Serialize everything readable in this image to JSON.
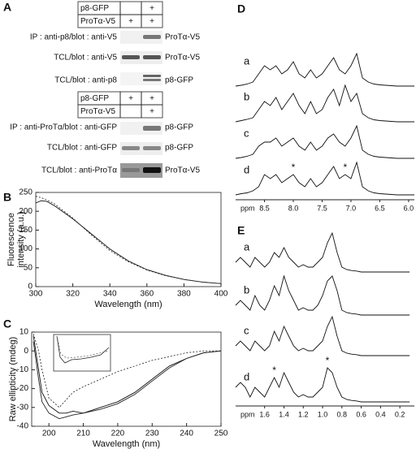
{
  "panel_a": {
    "label": "A",
    "blots": [
      {
        "header": [
          {
            "label": "p8-GFP",
            "cells": [
              null,
              "+"
            ]
          },
          {
            "label": "ProTα-V5",
            "cells": [
              "+",
              "+"
            ]
          }
        ],
        "rows": [
          {
            "label": "IP : anti-p8/blot : anti-V5",
            "band": "ProTα-V5"
          },
          {
            "label": "TCL/blot : anti-V5",
            "band": "ProTα-V5"
          },
          {
            "label": "TCL/blot : anti-p8",
            "band": "p8-GFP"
          }
        ]
      },
      {
        "header": [
          {
            "label": "p8-GFP",
            "cells": [
              "+",
              "+"
            ]
          },
          {
            "label": "ProTα-V5",
            "cells": [
              null,
              "+"
            ]
          }
        ],
        "rows": [
          {
            "label": "IP : anti-ProTα/blot : anti-GFP",
            "band": "p8-GFP"
          },
          {
            "label": "TCL/blot : anti-GFP",
            "band": "p8-GFP"
          },
          {
            "label": "TCL/blot : anti-ProTα",
            "band": "ProTα-V5"
          }
        ]
      }
    ]
  },
  "chart_data": [
    {
      "type": "line",
      "label": "B",
      "xlabel": "Wavelength (nm)",
      "ylabel": [
        "Fluorescence",
        "intensity (a.u.)"
      ],
      "x": [
        300,
        303,
        306,
        310,
        320,
        330,
        340,
        350,
        360,
        370,
        380,
        390,
        400
      ],
      "series": [
        {
          "color": "#111",
          "values": [
            222,
            228,
            226,
            215,
            180,
            140,
            100,
            68,
            45,
            30,
            19,
            12,
            8
          ]
        },
        {
          "color": "#333",
          "dash": "2,2",
          "values": [
            240,
            236,
            230,
            220,
            182,
            137,
            96,
            66,
            44,
            29,
            19,
            12,
            8
          ]
        }
      ],
      "xlim": [
        300,
        400
      ],
      "xticks": [
        300,
        320,
        340,
        360,
        380,
        400
      ],
      "ylim": [
        0,
        250
      ],
      "yticks": [
        0,
        50,
        100,
        150,
        200,
        250
      ]
    },
    {
      "type": "line",
      "label": "C",
      "xlabel": "Wavelength (nm)",
      "ylabel": [
        "Raw ellipticity (mdeg)"
      ],
      "x": [
        195.5,
        197,
        198,
        200,
        203,
        205,
        207,
        210,
        215,
        220,
        225,
        230,
        235,
        240,
        245,
        250
      ],
      "series": [
        {
          "color": "#111",
          "values": [
            8,
            -10,
            -22,
            -29,
            -33,
            -33,
            -32,
            -33,
            -30,
            -27,
            -22,
            -15,
            -8,
            -4,
            -1,
            0
          ]
        },
        {
          "color": "#222",
          "values": [
            5,
            -15,
            -27,
            -33,
            -36,
            -35,
            -34,
            -33,
            -31,
            -28,
            -23,
            -16,
            -9,
            -4,
            -1,
            0
          ]
        },
        {
          "color": "#333",
          "dash": "2,2",
          "values": [
            9,
            0,
            -10,
            -25,
            -30,
            -26,
            -22,
            -19,
            -15,
            -11,
            -8,
            -5,
            -3,
            -1,
            0,
            0
          ]
        }
      ],
      "xlim": [
        195,
        250
      ],
      "xticks": [
        200,
        210,
        220,
        230,
        240,
        250
      ],
      "ylim": [
        -40,
        10
      ],
      "yticks": [
        -40,
        -30,
        -20,
        -10,
        0,
        10
      ]
    },
    {
      "type": "spectrum",
      "label": "D",
      "xlabel": "ppm",
      "x": [
        9.0,
        8.9,
        8.8,
        8.7,
        8.6,
        8.5,
        8.4,
        8.3,
        8.2,
        8.1,
        8.0,
        7.9,
        7.8,
        7.7,
        7.6,
        7.5,
        7.4,
        7.3,
        7.2,
        7.1,
        7.0,
        6.9,
        6.8,
        6.7,
        6.6,
        6.5,
        6.4,
        6.3,
        6.2,
        6.1,
        6.0,
        5.9
      ],
      "series": [
        {
          "name": "a",
          "color": "#111",
          "values": [
            0,
            0.2,
            0.5,
            1,
            3,
            5,
            4,
            5,
            3,
            4,
            6,
            3,
            2,
            4,
            2,
            3,
            5,
            7,
            4,
            3,
            5,
            8,
            2,
            1,
            0.5,
            0.3,
            0.2,
            0.1,
            0,
            0,
            0,
            0
          ]
        },
        {
          "name": "b",
          "color": "#111",
          "values": [
            0,
            0.3,
            0.6,
            1,
            3,
            5,
            4,
            6,
            3,
            5,
            7,
            4,
            2,
            5,
            2,
            3,
            6,
            8,
            4,
            9,
            5,
            7,
            2,
            1,
            0.5,
            0.3,
            0.2,
            0.1,
            0,
            0,
            0,
            0
          ]
        },
        {
          "name": "c",
          "color": "#111",
          "values": [
            0,
            0.2,
            0.5,
            1,
            3,
            4,
            4,
            5,
            3,
            4,
            5,
            3,
            2,
            4,
            2,
            3,
            5,
            6,
            4,
            3,
            5,
            8,
            2,
            1,
            0.5,
            0.3,
            0.2,
            0.1,
            0,
            0,
            0,
            0
          ]
        },
        {
          "name": "d",
          "color": "#111",
          "values": [
            0,
            0.3,
            0.5,
            1,
            2,
            5,
            4,
            5,
            3,
            4,
            5,
            3,
            2,
            4,
            2,
            3,
            5,
            7,
            4,
            5,
            4,
            8,
            2,
            1,
            0.5,
            0.3,
            0.2,
            0.1,
            0,
            0,
            0,
            0
          ],
          "annotations": [
            {
              "text": "*",
              "x": 8.0
            },
            {
              "text": "*",
              "x": 7.1
            }
          ]
        }
      ],
      "xlim": [
        9.0,
        5.9
      ],
      "xticks": [
        8.5,
        {
          "value": 8,
          "label": "8.0"
        },
        7.5,
        {
          "value": 7,
          "label": "7.0"
        },
        6.5,
        {
          "value": 6,
          "label": "6.0"
        }
      ]
    },
    {
      "type": "spectrum",
      "label": "E",
      "xlabel": "ppm",
      "x": [
        1.9,
        1.85,
        1.8,
        1.75,
        1.7,
        1.65,
        1.6,
        1.55,
        1.5,
        1.45,
        1.4,
        1.35,
        1.3,
        1.25,
        1.2,
        1.15,
        1.1,
        1.05,
        1.0,
        0.95,
        0.9,
        0.85,
        0.8,
        0.75,
        0.7,
        0.65,
        0.6,
        0.55,
        0.5,
        0.45,
        0.4,
        0.35,
        0.3,
        0.25,
        0.2,
        0.15,
        0.1
      ],
      "series": [
        {
          "name": "a",
          "color": "#111",
          "values": [
            2,
            3,
            2,
            1,
            3,
            2,
            1,
            2,
            4,
            3,
            5,
            3,
            2,
            1,
            1.5,
            1,
            1,
            2,
            3,
            6,
            8,
            4,
            1,
            0.5,
            0.3,
            0.2,
            0,
            0,
            0,
            0,
            0,
            0,
            0,
            0,
            0,
            0,
            0
          ]
        },
        {
          "name": "b",
          "color": "#111",
          "values": [
            2,
            3,
            2,
            1,
            4,
            2,
            1,
            3,
            6,
            4,
            8,
            5,
            3,
            1,
            1.5,
            1,
            1,
            2,
            4,
            7,
            8,
            5,
            1,
            0.5,
            0.3,
            0.2,
            0,
            0,
            0,
            0,
            0,
            0,
            0,
            0,
            0,
            0,
            0
          ]
        },
        {
          "name": "c",
          "color": "#111",
          "values": [
            2,
            3,
            2,
            1,
            3,
            2,
            1,
            2,
            5,
            3,
            6,
            4,
            2,
            1,
            1.5,
            1,
            1,
            2,
            3,
            6,
            8,
            4,
            1,
            0.5,
            0.3,
            0.2,
            0,
            0,
            0,
            0,
            0,
            0,
            0,
            0,
            0,
            0,
            0
          ]
        },
        {
          "name": "d",
          "color": "#111",
          "values": [
            3,
            4,
            3,
            1,
            3,
            2,
            1,
            3,
            5,
            3,
            6,
            4,
            2,
            1,
            1.5,
            1,
            1,
            2,
            3,
            7,
            6,
            3,
            1,
            0.5,
            0.3,
            0.2,
            0,
            0,
            0,
            0,
            0,
            0,
            0,
            0,
            0,
            0,
            0
          ],
          "annotations": [
            {
              "text": "*",
              "x": 1.5
            },
            {
              "text": "*",
              "x": 0.95
            }
          ]
        }
      ],
      "xlim": [
        1.9,
        0.05
      ],
      "xticks": [
        1.6,
        1.4,
        1.2,
        {
          "value": 1,
          "label": "1.0"
        },
        0.8,
        0.6,
        0.4,
        0.2
      ]
    }
  ]
}
